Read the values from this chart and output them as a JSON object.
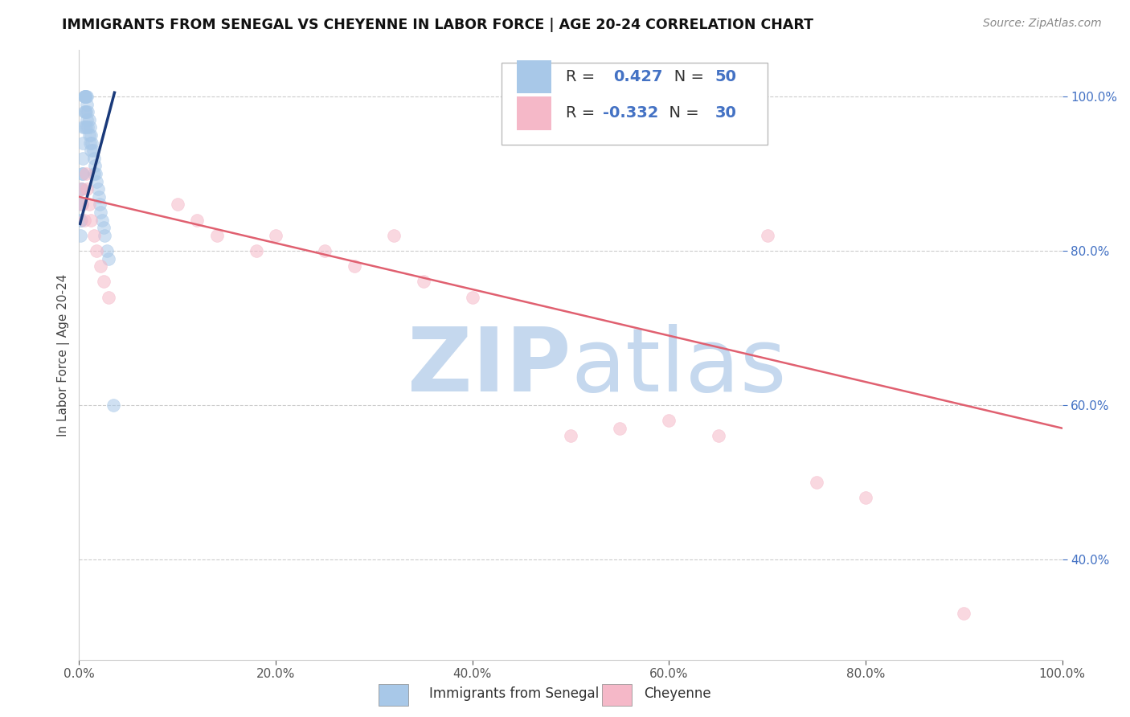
{
  "title": "IMMIGRANTS FROM SENEGAL VS CHEYENNE IN LABOR FORCE | AGE 20-24 CORRELATION CHART",
  "source": "Source: ZipAtlas.com",
  "ylabel": "In Labor Force | Age 20-24",
  "xlim": [
    0.0,
    1.0
  ],
  "ylim": [
    0.27,
    1.06
  ],
  "xticks": [
    0.0,
    0.2,
    0.4,
    0.6,
    0.8,
    1.0
  ],
  "yticks": [
    0.4,
    0.6,
    0.8,
    1.0
  ],
  "ytick_labels": [
    "40.0%",
    "60.0%",
    "80.0%",
    "100.0%"
  ],
  "xtick_labels": [
    "0.0%",
    "20.0%",
    "40.0%",
    "60.0%",
    "80.0%",
    "100.0%"
  ],
  "blue_color": "#a8c8e8",
  "pink_color": "#f5b8c8",
  "blue_edge": "#a8c8e8",
  "pink_edge": "#f5b8c8",
  "blue_line_color": "#1a3a7a",
  "pink_line_color": "#e06070",
  "R_blue": "0.427",
  "N_blue": "50",
  "R_pink": "-0.332",
  "N_pink": "30",
  "label_blue": "Immigrants from Senegal",
  "label_pink": "Cheyenne",
  "watermark_zip": "ZIP",
  "watermark_atlas": "atlas",
  "watermark_color": "#c5d8ee",
  "background_color": "#ffffff",
  "grid_color": "#cccccc",
  "scatter_size": 130,
  "scatter_alpha": 0.55,
  "blue_x": [
    0.001,
    0.001,
    0.002,
    0.002,
    0.002,
    0.003,
    0.003,
    0.003,
    0.004,
    0.004,
    0.004,
    0.004,
    0.005,
    0.005,
    0.005,
    0.005,
    0.006,
    0.006,
    0.006,
    0.007,
    0.007,
    0.007,
    0.008,
    0.008,
    0.008,
    0.009,
    0.009,
    0.01,
    0.01,
    0.011,
    0.011,
    0.012,
    0.012,
    0.013,
    0.014,
    0.015,
    0.015,
    0.016,
    0.017,
    0.018,
    0.019,
    0.02,
    0.021,
    0.022,
    0.023,
    0.025,
    0.026,
    0.028,
    0.03,
    0.035
  ],
  "blue_y": [
    0.84,
    0.82,
    0.88,
    0.86,
    0.84,
    0.9,
    0.88,
    0.86,
    0.96,
    0.94,
    0.92,
    0.9,
    1.0,
    1.0,
    0.98,
    0.96,
    1.0,
    1.0,
    0.98,
    1.0,
    0.98,
    0.96,
    1.0,
    0.99,
    0.97,
    0.98,
    0.96,
    0.97,
    0.95,
    0.96,
    0.94,
    0.95,
    0.93,
    0.94,
    0.93,
    0.92,
    0.9,
    0.91,
    0.9,
    0.89,
    0.88,
    0.87,
    0.86,
    0.85,
    0.84,
    0.83,
    0.82,
    0.8,
    0.79,
    0.6
  ],
  "pink_x": [
    0.002,
    0.003,
    0.005,
    0.007,
    0.008,
    0.01,
    0.012,
    0.015,
    0.018,
    0.022,
    0.025,
    0.03,
    0.1,
    0.12,
    0.14,
    0.18,
    0.2,
    0.25,
    0.28,
    0.32,
    0.35,
    0.4,
    0.5,
    0.55,
    0.6,
    0.65,
    0.7,
    0.75,
    0.8,
    0.9
  ],
  "pink_y": [
    0.88,
    0.86,
    0.84,
    0.9,
    0.88,
    0.86,
    0.84,
    0.82,
    0.8,
    0.78,
    0.76,
    0.74,
    0.86,
    0.84,
    0.82,
    0.8,
    0.82,
    0.8,
    0.78,
    0.82,
    0.76,
    0.74,
    0.56,
    0.57,
    0.58,
    0.56,
    0.82,
    0.5,
    0.48,
    0.33
  ],
  "blue_line_x": [
    0.001,
    0.036
  ],
  "blue_line_y": [
    0.835,
    1.005
  ],
  "pink_line_x": [
    0.0,
    1.0
  ],
  "pink_line_y": [
    0.87,
    0.57
  ]
}
